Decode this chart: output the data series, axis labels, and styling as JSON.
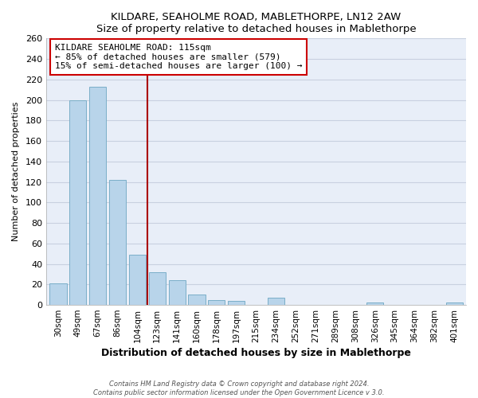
{
  "title": "KILDARE, SEAHOLME ROAD, MABLETHORPE, LN12 2AW",
  "subtitle": "Size of property relative to detached houses in Mablethorpe",
  "xlabel": "Distribution of detached houses by size in Mablethorpe",
  "ylabel": "Number of detached properties",
  "bar_labels": [
    "30sqm",
    "49sqm",
    "67sqm",
    "86sqm",
    "104sqm",
    "123sqm",
    "141sqm",
    "160sqm",
    "178sqm",
    "197sqm",
    "215sqm",
    "234sqm",
    "252sqm",
    "271sqm",
    "289sqm",
    "308sqm",
    "326sqm",
    "345sqm",
    "364sqm",
    "382sqm",
    "401sqm"
  ],
  "bar_values": [
    21,
    200,
    213,
    122,
    49,
    32,
    24,
    10,
    5,
    4,
    0,
    7,
    0,
    0,
    0,
    0,
    2,
    0,
    0,
    0,
    2
  ],
  "bar_color": "#b8d4ea",
  "bar_edge_color": "#7aaec8",
  "marker_line_color": "#aa0000",
  "annotation_line1": "KILDARE SEAHOLME ROAD: 115sqm",
  "annotation_line2": "← 85% of detached houses are smaller (579)",
  "annotation_line3": "15% of semi-detached houses are larger (100) →",
  "annotation_box_color": "white",
  "annotation_box_edge": "#cc0000",
  "ylim": [
    0,
    260
  ],
  "yticks": [
    0,
    20,
    40,
    60,
    80,
    100,
    120,
    140,
    160,
    180,
    200,
    220,
    240,
    260
  ],
  "footer_line1": "Contains HM Land Registry data © Crown copyright and database right 2024.",
  "footer_line2": "Contains public sector information licensed under the Open Government Licence v 3.0.",
  "bg_color": "#ffffff",
  "plot_bg_color": "#e8eef8",
  "grid_color": "#c8d0e0"
}
